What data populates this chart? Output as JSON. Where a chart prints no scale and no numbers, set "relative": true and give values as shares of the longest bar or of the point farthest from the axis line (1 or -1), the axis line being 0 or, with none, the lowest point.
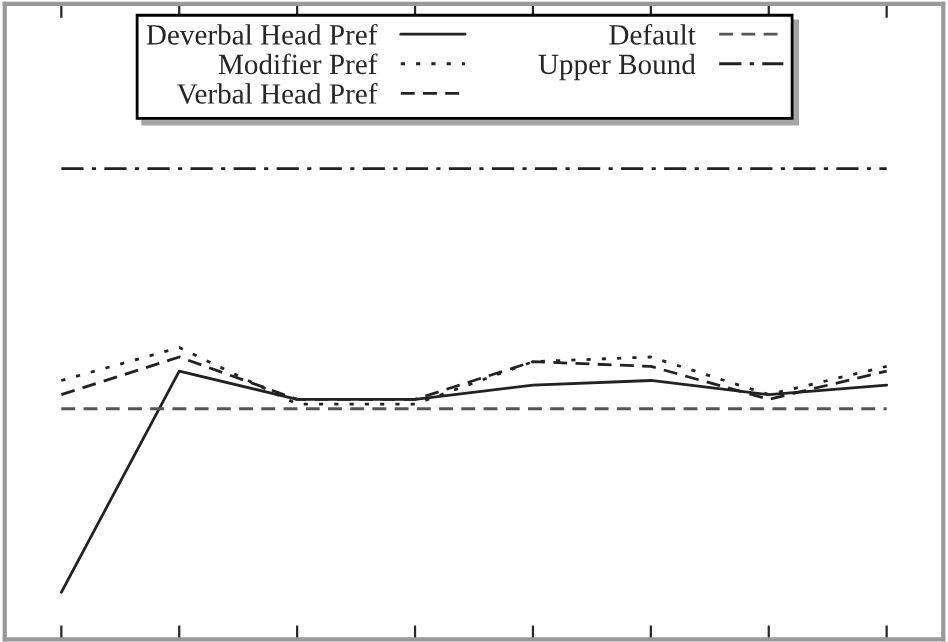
{
  "chart_data": {
    "type": "line",
    "relative": true,
    "categories": [
      null,
      null,
      null,
      null,
      null,
      null,
      null,
      null
    ],
    "series": [
      {
        "name": "Deverbal Head Pref",
        "color": "#222222",
        "line_style": "solid",
        "values": [
          0.1,
          0.57,
          0.51,
          0.51,
          0.54,
          0.55,
          0.52,
          0.54
        ]
      },
      {
        "name": "Modifier Pref",
        "color": "#222222",
        "line_style": "dotted",
        "values": [
          0.55,
          0.62,
          0.5,
          0.5,
          0.59,
          0.6,
          0.52,
          0.58
        ]
      },
      {
        "name": "Verbal Head Pref",
        "color": "#222222",
        "line_style": "dashed",
        "values": [
          0.52,
          0.6,
          0.51,
          0.51,
          0.59,
          0.58,
          0.51,
          0.57
        ]
      },
      {
        "name": "Default",
        "color": "#555555",
        "line_style": "dashed",
        "values": [
          0.49,
          0.49,
          0.49,
          0.49,
          0.49,
          0.49,
          0.49,
          0.49
        ]
      },
      {
        "name": "Upper Bound",
        "color": "#222222",
        "line_style": "dashdot",
        "values": [
          1,
          1,
          1,
          1,
          1,
          1,
          1,
          1
        ]
      }
    ],
    "legend": "top",
    "grid": false
  }
}
